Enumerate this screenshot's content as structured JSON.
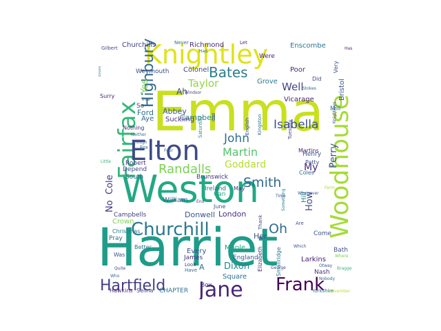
{
  "wordcloud": {
    "words": [
      {
        "text": "Emma",
        "color": "#c8e020"
      },
      {
        "text": "Harriet",
        "color": "#1e9c89"
      },
      {
        "text": "Weston",
        "color": "#22a884"
      },
      {
        "text": "Knightley",
        "color": "#dfe318"
      },
      {
        "text": "Woodhouse",
        "color": "#a5db36"
      },
      {
        "text": "Fairfax",
        "color": "#35b779"
      },
      {
        "text": "Elton",
        "color": "#3e4a89"
      },
      {
        "text": "Churchill",
        "color": "#2a788e"
      },
      {
        "text": "Jane",
        "color": "#482677"
      },
      {
        "text": "Frank",
        "color": "#440154"
      },
      {
        "text": "Hartfield",
        "color": "#433e85"
      },
      {
        "text": "Highbury",
        "color": "#31688e"
      },
      {
        "text": "Bates",
        "color": "#287d8e"
      },
      {
        "text": "Randalls",
        "color": "#7ad151"
      },
      {
        "text": "Smith",
        "color": "#31688e"
      },
      {
        "text": "Isabella",
        "color": "#3b528b"
      },
      {
        "text": "John",
        "color": "#2d708e"
      },
      {
        "text": "Martin",
        "color": "#52c569"
      },
      {
        "text": "Goddard",
        "color": "#b5de2b"
      },
      {
        "text": "Oh",
        "color": "#2f6c8e"
      },
      {
        "text": "Perry",
        "color": "#38588c"
      },
      {
        "text": "Taylor",
        "color": "#8fd744"
      },
      {
        "text": "Well",
        "color": "#414487"
      },
      {
        "text": "Dixon",
        "color": "#25858e"
      },
      {
        "text": "My",
        "color": "#482475"
      },
      {
        "text": "How",
        "color": "#3e4989"
      },
      {
        "text": "Campbell",
        "color": "#25838e"
      },
      {
        "text": "Ah",
        "color": "#404688"
      },
      {
        "text": "Yes",
        "color": "#7ad151"
      },
      {
        "text": "No",
        "color": "#46337e"
      },
      {
        "text": "Cole",
        "color": "#46327e"
      },
      {
        "text": "Colonel",
        "color": "#414487"
      },
      {
        "text": "Poor",
        "color": "#482878"
      },
      {
        "text": "Grove",
        "color": "#2a788e"
      },
      {
        "text": "Enscombe",
        "color": "#2a778e"
      },
      {
        "text": "Bristol",
        "color": "#3b528b"
      },
      {
        "text": "Abbey",
        "color": "#38598c"
      },
      {
        "text": "Suckling",
        "color": "#463480"
      },
      {
        "text": "Ford",
        "color": "#2c718e"
      },
      {
        "text": "Aye",
        "color": "#31688e"
      },
      {
        "text": "So",
        "color": "#3f4788"
      },
      {
        "text": "Vicarage",
        "color": "#482173"
      },
      {
        "text": "Mill",
        "color": "#2b748e"
      },
      {
        "text": "Donwell",
        "color": "#3a548c"
      },
      {
        "text": "London",
        "color": "#472d7b"
      },
      {
        "text": "Churchills",
        "color": "#424086"
      },
      {
        "text": "Richmond",
        "color": "#472c7a"
      },
      {
        "text": "Were",
        "color": "#481a6c"
      },
      {
        "text": "Weymouth",
        "color": "#3b528b"
      },
      {
        "text": "Robert",
        "color": "#45387f"
      },
      {
        "text": "Depend",
        "color": "#3f4889"
      },
      {
        "text": "South",
        "color": "#2f6c8e"
      },
      {
        "text": "Campbells",
        "color": "#433e85"
      },
      {
        "text": "Crown",
        "color": "#7fd34e"
      },
      {
        "text": "William",
        "color": "#31688e"
      },
      {
        "text": "Ireland",
        "color": "#2c728e"
      },
      {
        "text": "Can",
        "color": "#20a486"
      },
      {
        "text": "May",
        "color": "#46327e"
      },
      {
        "text": "June",
        "color": "#3b518b"
      },
      {
        "text": "Brunswick",
        "color": "#463480"
      },
      {
        "text": "Henry",
        "color": "#3b528b"
      },
      {
        "text": "Patty",
        "color": "#3c508b"
      },
      {
        "text": "Martins",
        "color": "#481a6c"
      },
      {
        "text": "Coles",
        "color": "#31688e"
      },
      {
        "text": "Hill",
        "color": "#23898e"
      },
      {
        "text": "Maple",
        "color": "#20a386"
      },
      {
        "text": "England",
        "color": "#38588c"
      },
      {
        "text": "Every",
        "color": "#3b518b"
      },
      {
        "text": "James",
        "color": "#46327e"
      },
      {
        "text": "Square",
        "color": "#2e6e8e"
      },
      {
        "text": "Box",
        "color": "#463480"
      },
      {
        "text": "A",
        "color": "#2e6f8e"
      },
      {
        "text": "Her",
        "color": "#3b528b"
      },
      {
        "text": "Come",
        "color": "#3b528b"
      },
      {
        "text": "Larkins",
        "color": "#482071"
      },
      {
        "text": "Nash",
        "color": "#472f7d"
      },
      {
        "text": "Bath",
        "color": "#3c4f8a"
      },
      {
        "text": "Hawkins",
        "color": "#482475"
      },
      {
        "text": "Selina",
        "color": "#404588"
      },
      {
        "text": "CHAPTER",
        "color": "#2d708e"
      },
      {
        "text": "Pray",
        "color": "#2f6b8e"
      },
      {
        "text": "Better",
        "color": "#2c728e"
      },
      {
        "text": "Was",
        "color": "#3b528b"
      },
      {
        "text": "Christmas",
        "color": "#2a778e"
      },
      {
        "text": "Look",
        "color": "#424086"
      },
      {
        "text": "Have",
        "color": "#31688e"
      },
      {
        "text": "Elizabeth",
        "color": "#46337e"
      },
      {
        "text": "Smallridge",
        "color": "#2a788e"
      },
      {
        "text": "Saturday",
        "color": "#25858e"
      },
      {
        "text": "English",
        "color": "#3c4f8a"
      },
      {
        "text": "Kingston",
        "color": "#2c718e"
      },
      {
        "text": "Tuesday",
        "color": "#404688"
      },
      {
        "text": "Thank",
        "color": "#404688"
      },
      {
        "text": "Let",
        "color": "#481d6f"
      },
      {
        "text": "Never",
        "color": "#31688e"
      },
      {
        "text": "Gilbert",
        "color": "#3e4a89"
      },
      {
        "text": "Very",
        "color": "#3b528b"
      },
      {
        "text": "Did",
        "color": "#404688"
      },
      {
        "text": "Surry",
        "color": "#482475"
      },
      {
        "text": "True",
        "color": "#31688e"
      },
      {
        "text": "Nothing",
        "color": "#472d7b"
      },
      {
        "text": "Though",
        "color": "#3b528b"
      },
      {
        "text": "Neither",
        "color": "#2d708e"
      },
      {
        "text": "Little",
        "color": "#35b779"
      },
      {
        "text": "Windsor",
        "color": "#404688"
      },
      {
        "text": "Otway",
        "color": "#38588c"
      },
      {
        "text": "Has",
        "color": "#481f70"
      },
      {
        "text": "Had",
        "color": "#31688e"
      },
      {
        "text": "Yorkshire",
        "color": "#2c728e"
      },
      {
        "text": "November",
        "color": "#b5de2b"
      },
      {
        "text": "God",
        "color": "#404688"
      },
      {
        "text": "Time",
        "color": "#3b528b"
      },
      {
        "text": "Farm",
        "color": "#a0da39"
      },
      {
        "text": "Quite",
        "color": "#404688"
      },
      {
        "text": "Whenever",
        "color": "#38588c"
      },
      {
        "text": "Where",
        "color": "#7ad151"
      },
      {
        "text": "Which",
        "color": "#3b528b"
      },
      {
        "text": "Something",
        "color": "#2a788e"
      },
      {
        "text": "Knightleys",
        "color": "#404688"
      },
      {
        "text": "Stokes",
        "color": "#31688e"
      },
      {
        "text": "George",
        "color": "#404688"
      },
      {
        "text": "Fox",
        "color": "#2e6e8e"
      },
      {
        "text": "Four",
        "color": "#31688e"
      },
      {
        "text": "Who",
        "color": "#31688e"
      },
      {
        "text": "Are",
        "color": "#3b528b"
      },
      {
        "text": "Elton",
        "color": "#2c718e"
      },
      {
        "text": "Nobody",
        "color": "#31688e"
      },
      {
        "text": "Bragge",
        "color": "#35b779"
      },
      {
        "text": "End",
        "color": "#404688"
      }
    ]
  }
}
